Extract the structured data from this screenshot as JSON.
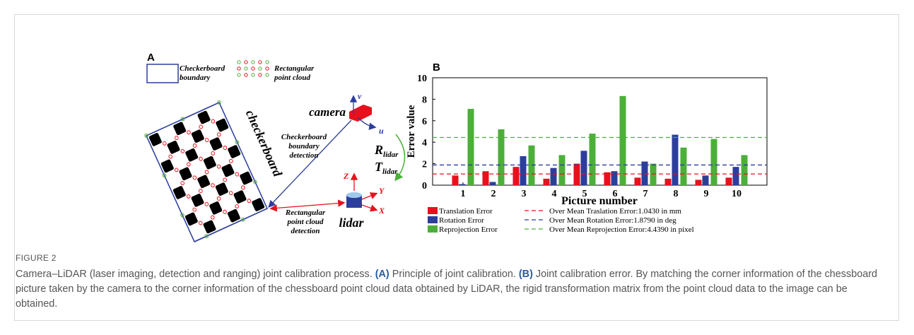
{
  "figure": {
    "label": "FIGURE 2",
    "caption": [
      "Camera–LiDAR (laser imaging, detection and ranging) joint calibration process. ",
      "(A)",
      " Principle of joint calibration. ",
      "(B)",
      " Joint calibration error. By matching the corner information of the chessboard picture taken by the camera to the corner information of the chessboard point cloud data obtained by LiDAR, the rigid transformation matrix from the point cloud data to the image can be obtained."
    ]
  },
  "panel_a": {
    "label": "A",
    "legend_boundary": [
      "Checkerboard",
      "boundary"
    ],
    "legend_cloud": [
      "Rectangular",
      "point cloud"
    ],
    "board_label": "checkerboard",
    "camera": "camera",
    "camera_axes": [
      "v",
      "u"
    ],
    "boundary_detection": [
      "Checkerboard",
      "boundary",
      "detection"
    ],
    "rotation": {
      "symbol": "R",
      "subscript": "lidar"
    },
    "translation": {
      "symbol": "T",
      "subscript": "lidar"
    },
    "lidar_axes": [
      "Z",
      "Y",
      "X"
    ],
    "lidar": "lidar",
    "cloud_detection": [
      "Rectangular",
      "point cloud",
      "detection"
    ]
  },
  "chart_data": {
    "type": "bar",
    "panel_label": "B",
    "x_label": "Picture number",
    "y_label": "Error value",
    "categories": [
      "1",
      "2",
      "3",
      "4",
      "5",
      "6",
      "7",
      "8",
      "9",
      "10"
    ],
    "ylim": [
      0,
      10
    ],
    "yticks": [
      0,
      2,
      4,
      6,
      8,
      10
    ],
    "series": [
      {
        "name": "Translation Error",
        "color": "#e8101c",
        "values": [
          0.9,
          1.3,
          1.7,
          0.6,
          2.0,
          1.2,
          0.7,
          0.6,
          0.5,
          0.7
        ]
      },
      {
        "name": "Rotation Error",
        "color": "#2c3e9c",
        "values": [
          0.1,
          0.3,
          2.7,
          1.6,
          3.2,
          1.3,
          2.2,
          4.7,
          0.9,
          1.7
        ]
      },
      {
        "name": "Reprojection Error",
        "color": "#4caf3a",
        "values": [
          7.1,
          5.2,
          3.7,
          2.8,
          4.8,
          8.3,
          2.0,
          3.5,
          4.3,
          2.8
        ]
      }
    ],
    "mean_lines": [
      {
        "name": "Over Mean Traslation Error:1.0430 in mm",
        "value": 1.043,
        "color": "#e8101c"
      },
      {
        "name": "Over Mean Rotation Error:1.8790 in deg",
        "value": 1.879,
        "color": "#2c3e9c"
      },
      {
        "name": "Over Mean Reprojection Error:4.4390 in pixel",
        "value": 4.439,
        "color": "#4caf3a"
      }
    ]
  }
}
